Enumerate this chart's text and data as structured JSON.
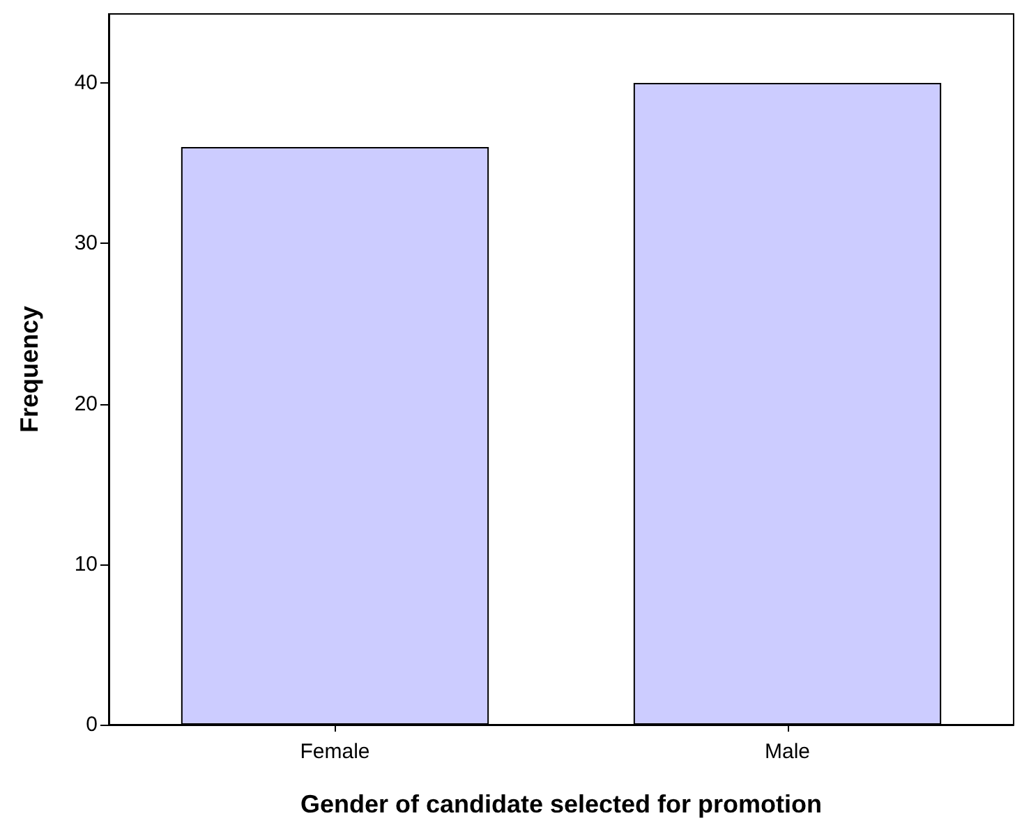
{
  "chart_data": {
    "type": "bar",
    "xlabel": "Gender of candidate selected for promotion",
    "ylabel": "Frequency",
    "categories": [
      "Female",
      "Male"
    ],
    "values": [
      36,
      40
    ],
    "color": "#ccccff",
    "ylim": [
      0,
      44.3
    ],
    "yticks": [
      0,
      10,
      20,
      30,
      40
    ],
    "grid": false
  }
}
